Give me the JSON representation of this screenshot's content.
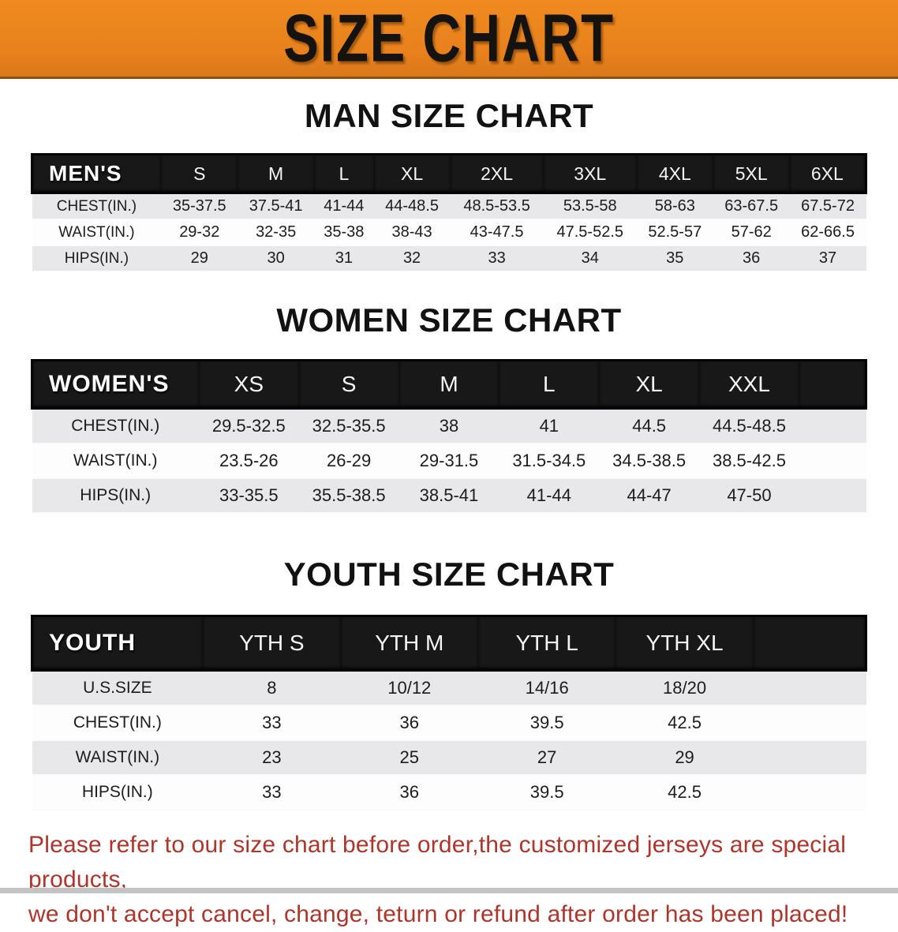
{
  "banner": {
    "title": "SIZE CHART",
    "bg_color": "#e8811c",
    "text_color": "#151310"
  },
  "sections": [
    {
      "title": "MAN SIZE CHART",
      "table": {
        "header": [
          "MEN'S",
          "S",
          "M",
          "L",
          "XL",
          "2XL",
          "3XL",
          "4XL",
          "5XL",
          "6XL"
        ],
        "rows": [
          [
            "CHEST(IN.)",
            "35-37.5",
            "37.5-41",
            "41-44",
            "44-48.5",
            "48.5-53.5",
            "53.5-58",
            "58-63",
            "63-67.5",
            "67.5-72"
          ],
          [
            "WAIST(IN.)",
            "29-32",
            "32-35",
            "35-38",
            "38-43",
            "43-47.5",
            "47.5-52.5",
            "52.5-57",
            "57-62",
            "62-66.5"
          ],
          [
            "HIPS(IN.)",
            "29",
            "30",
            "31",
            "32",
            "33",
            "34",
            "35",
            "36",
            "37"
          ]
        ]
      }
    },
    {
      "title": "WOMEN SIZE CHART",
      "table": {
        "header": [
          "WOMEN'S",
          "XS",
          "S",
          "M",
          "L",
          "XL",
          "XXL"
        ],
        "rows": [
          [
            "CHEST(IN.)",
            "29.5-32.5",
            "32.5-35.5",
            "38",
            "41",
            "44.5",
            "44.5-48.5"
          ],
          [
            "WAIST(IN.)",
            "23.5-26",
            "26-29",
            "29-31.5",
            "31.5-34.5",
            "34.5-38.5",
            "38.5-42.5"
          ],
          [
            "HIPS(IN.)",
            "33-35.5",
            "35.5-38.5",
            "38.5-41",
            "41-44",
            "44-47",
            "47-50"
          ]
        ]
      }
    },
    {
      "title": "YOUTH SIZE CHART",
      "table": {
        "header": [
          "YOUTH",
          "YTH S",
          "YTH M",
          "YTH L",
          "YTH XL"
        ],
        "rows": [
          [
            "U.S.SIZE",
            "8",
            "10/12",
            "14/16",
            "18/20"
          ],
          [
            "CHEST(IN.)",
            "33",
            "36",
            "39.5",
            "42.5"
          ],
          [
            "WAIST(IN.)",
            "23",
            "25",
            "27",
            "29"
          ],
          [
            "HIPS(IN.)",
            "33",
            "36",
            "39.5",
            "42.5"
          ]
        ]
      }
    }
  ],
  "footer": {
    "line1": "Please refer to our size chart before order,the customized jerseys are special products,",
    "line2": "we don't accept cancel, change, teturn or refund after order has been placed!",
    "text_color": "#ac352c"
  }
}
